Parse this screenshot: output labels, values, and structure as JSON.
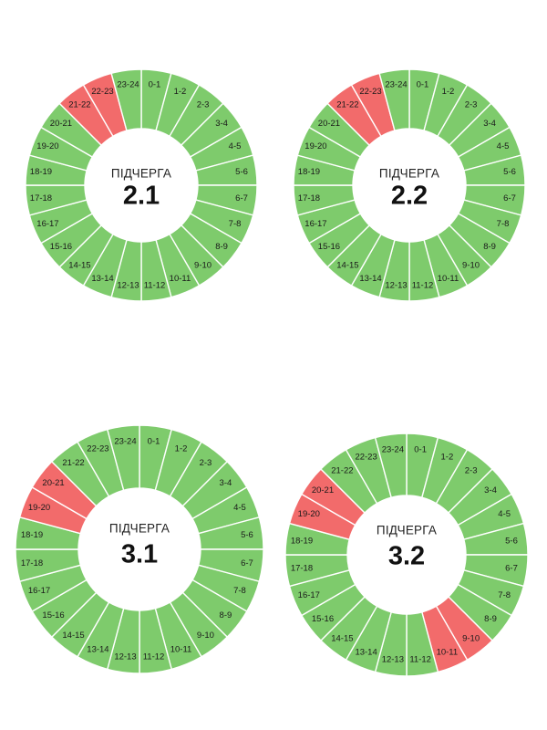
{
  "chart_data": [
    {
      "type": "pie",
      "caption": "ПІДЧЕРГА",
      "queue": "2.1",
      "categories": [
        "0-1",
        "1-2",
        "2-3",
        "3-4",
        "4-5",
        "5-6",
        "6-7",
        "7-8",
        "8-9",
        "9-10",
        "10-11",
        "11-12",
        "12-13",
        "13-14",
        "14-15",
        "15-16",
        "16-17",
        "17-18",
        "18-19",
        "19-20",
        "20-21",
        "21-22",
        "22-23",
        "23-24"
      ],
      "values": [
        1,
        1,
        1,
        1,
        1,
        1,
        1,
        1,
        1,
        1,
        1,
        1,
        1,
        1,
        1,
        1,
        1,
        1,
        1,
        1,
        1,
        1,
        1,
        1
      ],
      "status": [
        "on",
        "on",
        "on",
        "on",
        "on",
        "on",
        "on",
        "on",
        "on",
        "on",
        "on",
        "on",
        "on",
        "on",
        "on",
        "on",
        "on",
        "on",
        "on",
        "on",
        "on",
        "off",
        "off",
        "on"
      ]
    },
    {
      "type": "pie",
      "caption": "ПІДЧЕРГА",
      "queue": "2.2",
      "categories": [
        "0-1",
        "1-2",
        "2-3",
        "3-4",
        "4-5",
        "5-6",
        "6-7",
        "7-8",
        "8-9",
        "9-10",
        "10-11",
        "11-12",
        "12-13",
        "13-14",
        "14-15",
        "15-16",
        "16-17",
        "17-18",
        "18-19",
        "19-20",
        "20-21",
        "21-22",
        "22-23",
        "23-24"
      ],
      "values": [
        1,
        1,
        1,
        1,
        1,
        1,
        1,
        1,
        1,
        1,
        1,
        1,
        1,
        1,
        1,
        1,
        1,
        1,
        1,
        1,
        1,
        1,
        1,
        1
      ],
      "status": [
        "on",
        "on",
        "on",
        "on",
        "on",
        "on",
        "on",
        "on",
        "on",
        "on",
        "on",
        "on",
        "on",
        "on",
        "on",
        "on",
        "on",
        "on",
        "on",
        "on",
        "on",
        "off",
        "off",
        "on"
      ]
    },
    {
      "type": "pie",
      "caption": "ПІДЧЕРГА",
      "queue": "3.1",
      "categories": [
        "0-1",
        "1-2",
        "2-3",
        "3-4",
        "4-5",
        "5-6",
        "6-7",
        "7-8",
        "8-9",
        "9-10",
        "10-11",
        "11-12",
        "12-13",
        "13-14",
        "14-15",
        "15-16",
        "16-17",
        "17-18",
        "18-19",
        "19-20",
        "20-21",
        "21-22",
        "22-23",
        "23-24"
      ],
      "values": [
        1,
        1,
        1,
        1,
        1,
        1,
        1,
        1,
        1,
        1,
        1,
        1,
        1,
        1,
        1,
        1,
        1,
        1,
        1,
        1,
        1,
        1,
        1,
        1
      ],
      "status": [
        "on",
        "on",
        "on",
        "on",
        "on",
        "on",
        "on",
        "on",
        "on",
        "on",
        "on",
        "on",
        "on",
        "on",
        "on",
        "on",
        "on",
        "on",
        "on",
        "off",
        "off",
        "on",
        "on",
        "on"
      ]
    },
    {
      "type": "pie",
      "caption": "ПІДЧЕРГА",
      "queue": "3.2",
      "categories": [
        "0-1",
        "1-2",
        "2-3",
        "3-4",
        "4-5",
        "5-6",
        "6-7",
        "7-8",
        "8-9",
        "9-10",
        "10-11",
        "11-12",
        "12-13",
        "13-14",
        "14-15",
        "15-16",
        "16-17",
        "17-18",
        "18-19",
        "19-20",
        "20-21",
        "21-22",
        "22-23",
        "23-24"
      ],
      "values": [
        1,
        1,
        1,
        1,
        1,
        1,
        1,
        1,
        1,
        1,
        1,
        1,
        1,
        1,
        1,
        1,
        1,
        1,
        1,
        1,
        1,
        1,
        1,
        1
      ],
      "status": [
        "on",
        "on",
        "on",
        "on",
        "on",
        "on",
        "on",
        "on",
        "on",
        "off",
        "off",
        "on",
        "on",
        "on",
        "on",
        "on",
        "on",
        "on",
        "on",
        "off",
        "off",
        "on",
        "on",
        "on"
      ]
    }
  ],
  "colors": {
    "on": "#7ecb6c",
    "off": "#f26b6b",
    "divider": "#ffffff"
  }
}
